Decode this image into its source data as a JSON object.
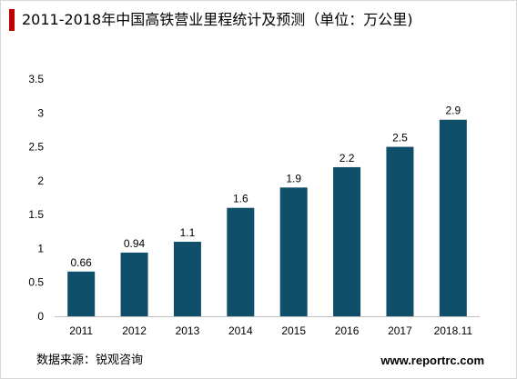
{
  "colors": {
    "bar": "#0f4f69",
    "axis": "#bfbfbf",
    "title_accent": "#c00000"
  },
  "footer": {
    "source": "数据来源：锐观咨询",
    "url": "www.reportrc.com"
  },
  "chart_data": {
    "type": "bar",
    "title": "2011-2018年中国高铁营业里程统计及预测（单位：万公里)",
    "xlabel": "",
    "ylabel": "",
    "categories": [
      "2011",
      "2012",
      "2013",
      "2014",
      "2015",
      "2016",
      "2017",
      "2018.11"
    ],
    "values": [
      0.66,
      0.94,
      1.1,
      1.6,
      1.9,
      2.2,
      2.5,
      2.9
    ],
    "value_labels": [
      "0.66",
      "0.94",
      "1.1",
      "1.6",
      "1.9",
      "2.2",
      "2.5",
      "2.9"
    ],
    "ylim": [
      0,
      3.5
    ],
    "yticks": [
      0,
      0.5,
      1,
      1.5,
      2,
      2.5,
      3,
      3.5
    ],
    "ytick_labels": [
      "0",
      "0.5",
      "1",
      "1.5",
      "2",
      "2.5",
      "3",
      "3.5"
    ],
    "grid": false,
    "legend": "none"
  }
}
